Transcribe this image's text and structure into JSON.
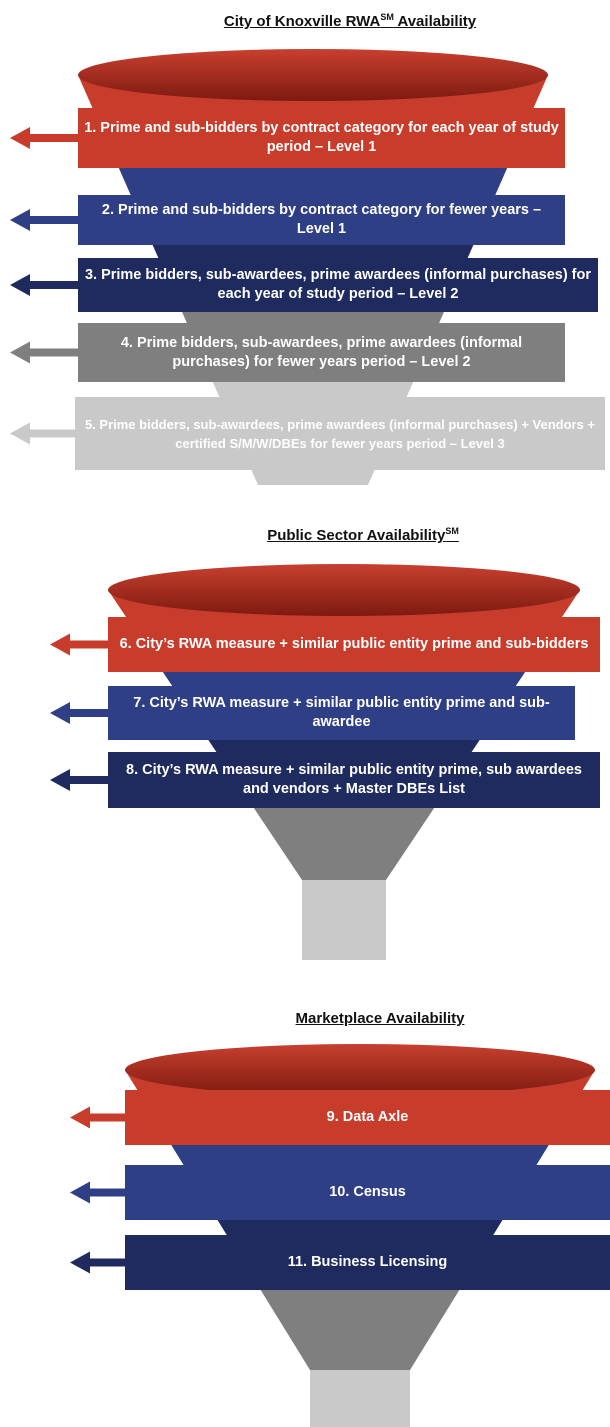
{
  "sections": [
    {
      "title": {
        "main": "City of Knoxville RWA",
        "sup": "SM",
        "rest": " Availability"
      },
      "items": [
        {
          "text": "1. Prime and sub-bidders by contract category for each year of study period – Level 1"
        },
        {
          "text": "2. Prime and sub-bidders by contract category for fewer years – Level 1"
        },
        {
          "text": "3. Prime bidders, sub-awardees, prime awardees (informal purchases) for each year of study period – Level 2"
        },
        {
          "text": "4. Prime bidders, sub-awardees, prime awardees (informal purchases) for fewer years period – Level 2"
        },
        {
          "text": "5. Prime bidders, sub-awardees, prime awardees (informal purchases) + Vendors + certified S/M/W/DBEs for fewer years period – Level 3"
        }
      ]
    },
    {
      "title": {
        "main": "Public Sector Availability",
        "sup": "SM"
      },
      "items": [
        {
          "text": "6. City’s RWA measure + similar public entity prime and sub-bidders"
        },
        {
          "text": "7. City’s RWA measure + similar public entity prime and sub-awardee"
        },
        {
          "text": "8. City’s RWA measure + similar public entity prime, sub awardees and vendors + Master DBEs List"
        }
      ]
    },
    {
      "title": {
        "main": "Marketplace Availability"
      },
      "items": [
        {
          "text": "9. Data Axle"
        },
        {
          "text": "10. Census"
        },
        {
          "text": "11. Business Licensing"
        }
      ]
    }
  ]
}
